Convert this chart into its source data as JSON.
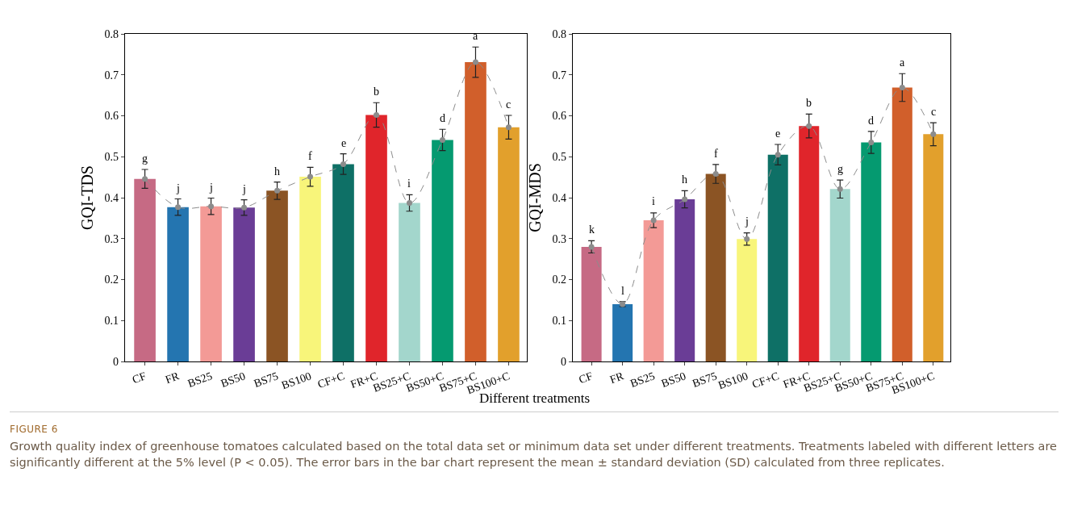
{
  "chart_data": [
    {
      "type": "bar",
      "ylabel": "GQI-TDS",
      "xlabel": "Different treatments",
      "categories": [
        "CF",
        "FR",
        "BS25",
        "BS50",
        "BS75",
        "BS100",
        "CF+C",
        "FR+C",
        "BS25+C",
        "BS50+C",
        "BS75+C",
        "BS100+C"
      ],
      "series": [
        {
          "colors": [
            "#c66a84",
            "#2475b0",
            "#f39a96",
            "#6a3d96",
            "#8b5424",
            "#f8f57a",
            "#0e7066",
            "#e0252b",
            "#a3d6cc",
            "#059a70",
            "#d15f2b",
            "#e2a02c"
          ],
          "values": [
            0.446,
            0.377,
            0.379,
            0.376,
            0.417,
            0.451,
            0.482,
            0.602,
            0.387,
            0.541,
            0.731,
            0.572
          ],
          "errors": [
            0.023,
            0.02,
            0.02,
            0.019,
            0.021,
            0.023,
            0.025,
            0.03,
            0.02,
            0.026,
            0.037,
            0.029
          ]
        },
        {
          "type": "line",
          "color": "#8c8c8c",
          "line_style": "dashed",
          "marker": "circle",
          "values": [
            0.446,
            0.377,
            0.379,
            0.376,
            0.417,
            0.451,
            0.482,
            0.602,
            0.387,
            0.541,
            0.731,
            0.572
          ]
        }
      ],
      "ylim": [
        0,
        0.8
      ],
      "yticks": [
        0,
        0.1,
        0.2,
        0.3,
        0.4,
        0.5,
        0.6,
        0.7,
        0.8
      ],
      "grid": false,
      "annotations": [
        {
          "text": "g",
          "x": "CF",
          "y": 0.469
        },
        {
          "text": "j",
          "x": "FR",
          "y": 0.397
        },
        {
          "text": "j",
          "x": "BS25",
          "y": 0.399
        },
        {
          "text": "j",
          "x": "BS50",
          "y": 0.395
        },
        {
          "text": "h",
          "x": "BS75",
          "y": 0.438
        },
        {
          "text": "f",
          "x": "BS100",
          "y": 0.474
        },
        {
          "text": "e",
          "x": "CF+C",
          "y": 0.507
        },
        {
          "text": "b",
          "x": "FR+C",
          "y": 0.632
        },
        {
          "text": "i",
          "x": "BS25+C",
          "y": 0.407
        },
        {
          "text": "d",
          "x": "BS50+C",
          "y": 0.567
        },
        {
          "text": "a",
          "x": "BS75+C",
          "y": 0.768
        },
        {
          "text": "c",
          "x": "BS100+C",
          "y": 0.601
        },
        "FIGURE 6",
        "Growth quality index of greenhouse tomatoes calculated based on the total data set or minimum data set under different treatments. Treatments labeled with different letters are significantly different at the 5% level (P < 0.05). The error bars in the bar chart represent the mean ± standard deviation (SD) calculated from three replicates."
      ]
    },
    {
      "type": "bar",
      "ylabel": "GQI-MDS",
      "categories": [
        "CF",
        "FR",
        "BS25",
        "BS50",
        "BS75",
        "BS100",
        "CF+C",
        "FR+C",
        "BS25+C",
        "BS50+C",
        "BS75+C",
        "BS100+C"
      ],
      "series": [
        {
          "colors": [
            "#c66a84",
            "#2475b0",
            "#f39a96",
            "#6a3d96",
            "#8b5424",
            "#f8f57a",
            "#0e7066",
            "#e0252b",
            "#a3d6cc",
            "#059a70",
            "#d15f2b",
            "#e2a02c"
          ],
          "values": [
            0.28,
            0.14,
            0.345,
            0.396,
            0.458,
            0.299,
            0.505,
            0.575,
            0.421,
            0.535,
            0.669,
            0.555
          ],
          "errors": [
            0.015,
            0.006,
            0.018,
            0.021,
            0.023,
            0.015,
            0.025,
            0.029,
            0.022,
            0.027,
            0.034,
            0.028
          ]
        },
        {
          "type": "line",
          "color": "#8c8c8c",
          "line_style": "dashed",
          "marker": "circle",
          "values": [
            0.28,
            0.14,
            0.345,
            0.396,
            0.458,
            0.299,
            0.505,
            0.575,
            0.421,
            0.535,
            0.669,
            0.555
          ]
        }
      ],
      "ylim": [
        0,
        0.8
      ],
      "yticks": [
        0,
        0.1,
        0.2,
        0.3,
        0.4,
        0.5,
        0.6,
        0.7,
        0.8
      ],
      "grid": false,
      "annotations": [
        {
          "text": "k",
          "x": "CF",
          "y": 0.295
        },
        {
          "text": "l",
          "x": "FR",
          "y": 0.146
        },
        {
          "text": "i",
          "x": "BS25",
          "y": 0.364
        },
        {
          "text": "h",
          "x": "BS50",
          "y": 0.417
        },
        {
          "text": "f",
          "x": "BS75",
          "y": 0.481
        },
        {
          "text": "j",
          "x": "BS100",
          "y": 0.315
        },
        {
          "text": "e",
          "x": "CF+C",
          "y": 0.53
        },
        {
          "text": "b",
          "x": "FR+C",
          "y": 0.604
        },
        {
          "text": "g",
          "x": "BS25+C",
          "y": 0.444
        },
        {
          "text": "d",
          "x": "BS50+C",
          "y": 0.562
        },
        {
          "text": "a",
          "x": "BS75+C",
          "y": 0.703
        },
        {
          "text": "c",
          "x": "BS100+C",
          "y": 0.583
        }
      ]
    }
  ]
}
